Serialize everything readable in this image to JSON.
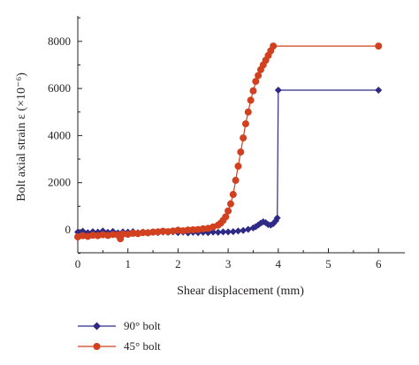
{
  "chart_data": {
    "type": "line",
    "xlabel": "Shear displacement (mm)",
    "ylabel": "Bolt axial strain ε (×10⁻⁶)",
    "xlim": [
      0,
      6.5
    ],
    "ylim": [
      -1000,
      9000
    ],
    "x_ticks": [
      0,
      1,
      2,
      3,
      4,
      5,
      6
    ],
    "y_ticks": [
      0,
      2000,
      4000,
      6000,
      8000
    ],
    "x_tick_labels": [
      "0",
      "1",
      "2",
      "3",
      "4",
      "5",
      "6"
    ],
    "y_tick_labels": [
      "0",
      "2000",
      "4000",
      "6000",
      "8000"
    ],
    "grid": false,
    "legend_position": "bottom-left",
    "series": [
      {
        "name": "90° bolt",
        "color": "#2e2a86",
        "marker": "diamond",
        "x": [
          0,
          0.1,
          0.2,
          0.3,
          0.4,
          0.5,
          0.6,
          0.7,
          0.8,
          0.9,
          1.0,
          1.1,
          1.2,
          1.3,
          1.4,
          1.5,
          1.6,
          1.7,
          1.8,
          1.9,
          2.0,
          2.1,
          2.2,
          2.3,
          2.4,
          2.5,
          2.6,
          2.7,
          2.8,
          2.9,
          3.0,
          3.1,
          3.2,
          3.3,
          3.4,
          3.5,
          3.55,
          3.6,
          3.65,
          3.7,
          3.75,
          3.8,
          3.85,
          3.9,
          3.95,
          3.98,
          4.0,
          6.0
        ],
        "values": [
          -100,
          -60,
          -120,
          -80,
          -100,
          -50,
          -110,
          -70,
          -130,
          -90,
          -100,
          -80,
          -120,
          -100,
          -110,
          -90,
          -120,
          -100,
          -110,
          -90,
          -120,
          -100,
          -130,
          -110,
          -120,
          -110,
          -120,
          -100,
          -110,
          -90,
          -90,
          -80,
          -50,
          -30,
          20,
          80,
          130,
          200,
          280,
          340,
          300,
          220,
          200,
          260,
          380,
          500,
          5930,
          5930
        ]
      },
      {
        "name": "45° bolt",
        "color": "#d1401f",
        "marker": "circle",
        "x": [
          0,
          0.1,
          0.2,
          0.3,
          0.4,
          0.5,
          0.6,
          0.7,
          0.8,
          0.85,
          0.9,
          1.0,
          1.1,
          1.2,
          1.3,
          1.4,
          1.5,
          1.6,
          1.7,
          1.8,
          1.9,
          2.0,
          2.1,
          2.2,
          2.3,
          2.4,
          2.5,
          2.6,
          2.7,
          2.8,
          2.85,
          2.9,
          2.95,
          3.0,
          3.05,
          3.1,
          3.15,
          3.2,
          3.25,
          3.3,
          3.35,
          3.4,
          3.45,
          3.5,
          3.55,
          3.6,
          3.65,
          3.7,
          3.75,
          3.8,
          3.85,
          3.9,
          6.0
        ],
        "values": [
          -300,
          -250,
          -280,
          -230,
          -250,
          -210,
          -240,
          -200,
          -220,
          -380,
          -180,
          -190,
          -150,
          -160,
          -120,
          -130,
          -100,
          -90,
          -60,
          -80,
          -50,
          -20,
          -40,
          -10,
          0,
          10,
          40,
          60,
          120,
          200,
          280,
          400,
          550,
          800,
          1100,
          1500,
          2100,
          2700,
          3300,
          3900,
          4500,
          5000,
          5500,
          5900,
          6300,
          6550,
          6800,
          7000,
          7200,
          7400,
          7600,
          7800,
          7800
        ]
      }
    ]
  }
}
